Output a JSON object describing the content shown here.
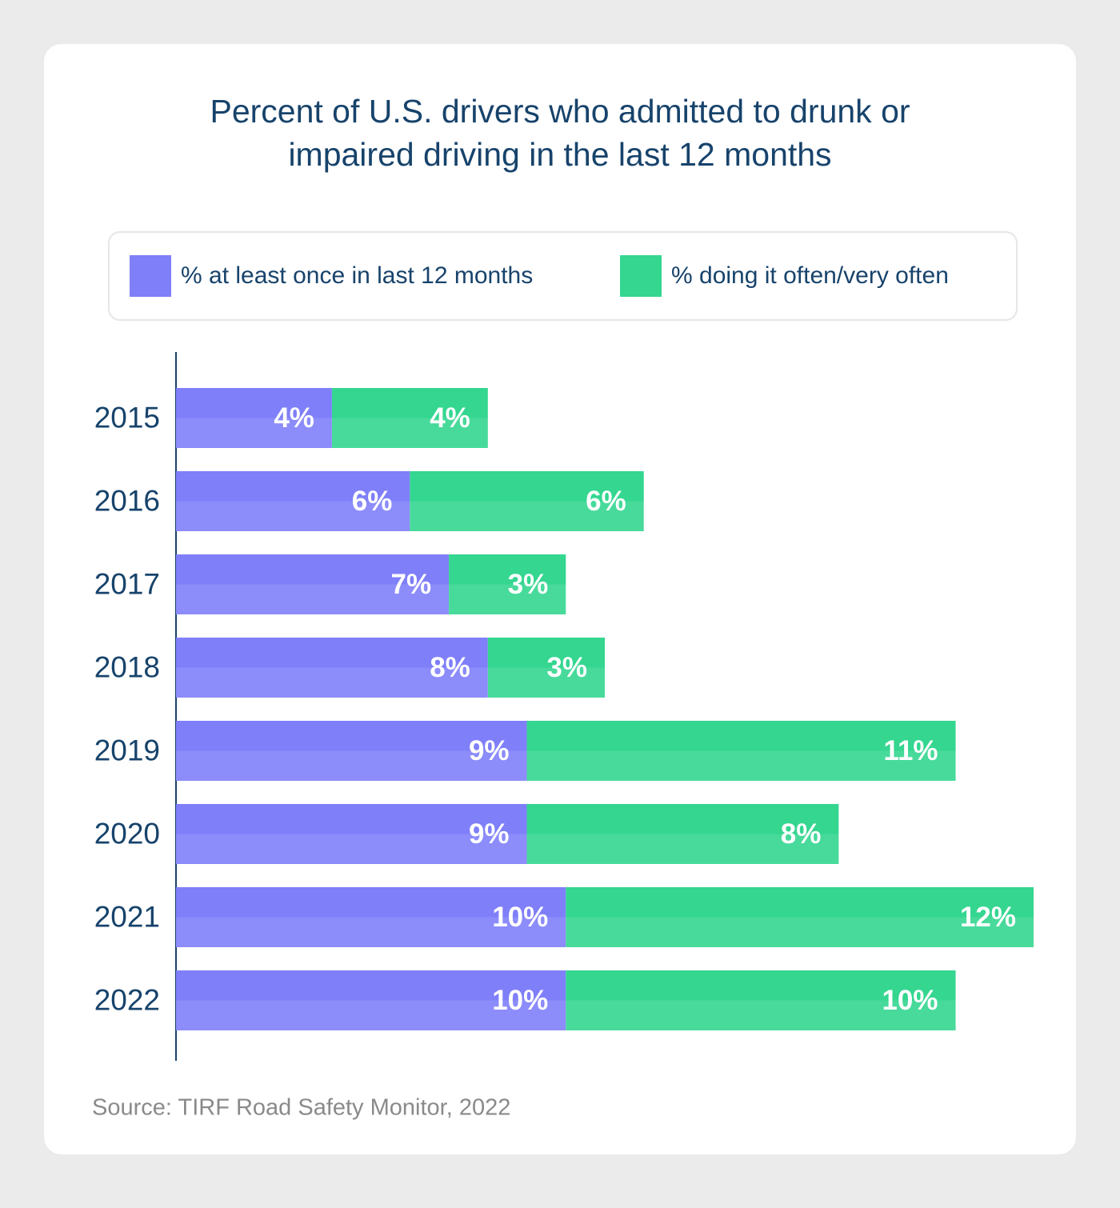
{
  "chart_data": {
    "type": "stacked-bar-horizontal",
    "title": "Percent of U.S. drivers who admitted to drunk or impaired driving in the last 12 months",
    "categories": [
      "2015",
      "2016",
      "2017",
      "2018",
      "2019",
      "2020",
      "2021",
      "2022"
    ],
    "series": [
      {
        "name": "% at least once in last 12 months",
        "color": "#7f7ff9",
        "values": [
          4,
          6,
          7,
          8,
          9,
          9,
          10,
          10
        ],
        "value_labels": [
          "4%",
          "6%",
          "7%",
          "8%",
          "9%",
          "9%",
          "10%",
          "10%"
        ]
      },
      {
        "name": "% doing it often/very often",
        "color": "#34d690",
        "values": [
          4,
          6,
          3,
          3,
          11,
          8,
          12,
          10
        ],
        "value_labels": [
          "4%",
          "6%",
          "3%",
          "3%",
          "11%",
          "8%",
          "12%",
          "10%"
        ]
      }
    ],
    "source": "Source: TIRF Road Safety Monitor, 2022"
  }
}
